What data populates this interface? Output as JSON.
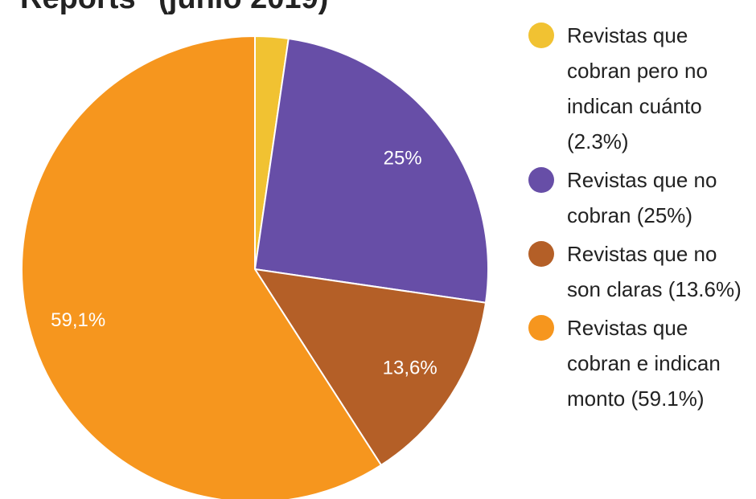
{
  "chart_data": {
    "type": "pie",
    "title": "Reports\" (junio 2019)",
    "categories": [
      "Revistas que cobran pero no indican cuánto (2.3%)",
      "Revistas que no cobran (25%)",
      "Revistas que no son claras (13.6%)",
      "Revistas que cobran e indican monto (59.1%)"
    ],
    "values": [
      2.3,
      25,
      13.6,
      59.1
    ],
    "value_labels": [
      null,
      "25%",
      "13,6%",
      "59,1%"
    ],
    "colors": [
      "#f1c232",
      "#674ea7",
      "#b45f27",
      "#f6961e"
    ]
  }
}
